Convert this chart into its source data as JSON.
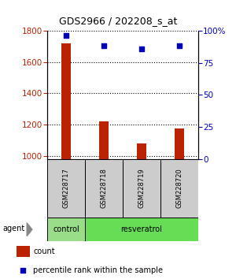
{
  "title": "GDS2966 / 202208_s_at",
  "samples": [
    "GSM228717",
    "GSM228718",
    "GSM228719",
    "GSM228720"
  ],
  "counts": [
    1720,
    1220,
    1080,
    1175
  ],
  "percentiles": [
    96,
    88,
    86,
    88
  ],
  "ylim_left": [
    980,
    1800
  ],
  "ylim_right": [
    0,
    100
  ],
  "yticks_left": [
    1000,
    1200,
    1400,
    1600,
    1800
  ],
  "yticks_right": [
    0,
    25,
    50,
    75,
    100
  ],
  "ytick_right_labels": [
    "0",
    "25",
    "50",
    "75",
    "100%"
  ],
  "bar_color": "#bb2200",
  "dot_color": "#0000bb",
  "bg_color": "#ffffff",
  "sample_bg": "#cccccc",
  "agent_bg_control": "#99dd88",
  "agent_bg_resveratrol": "#66dd55",
  "bar_width": 0.25,
  "dot_size": 25,
  "title_fontsize": 9,
  "tick_fontsize": 7.5,
  "sample_fontsize": 6,
  "agent_fontsize": 7,
  "legend_fontsize": 7
}
